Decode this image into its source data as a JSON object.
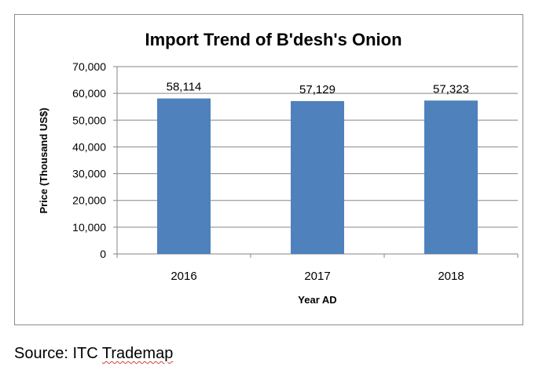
{
  "chart_data": {
    "type": "bar",
    "title": "Import Trend of B'desh's Onion",
    "xlabel": "Year AD",
    "ylabel": "Price (Thousand US$)",
    "categories": [
      "2016",
      "2017",
      "2018"
    ],
    "values": [
      58114,
      57129,
      57323
    ],
    "data_labels": [
      "58,114",
      "57,129",
      "57,323"
    ],
    "ylim": [
      0,
      70000
    ],
    "yticks": [
      0,
      10000,
      20000,
      30000,
      40000,
      50000,
      60000,
      70000
    ],
    "ytick_labels": [
      "0",
      "10,000",
      "20,000",
      "30,000",
      "40,000",
      "50,000",
      "60,000",
      "70,000"
    ],
    "grid": true,
    "bar_color": "#4f81bd"
  },
  "source": {
    "prefix": "Source: ITC ",
    "name": "Trademap"
  }
}
